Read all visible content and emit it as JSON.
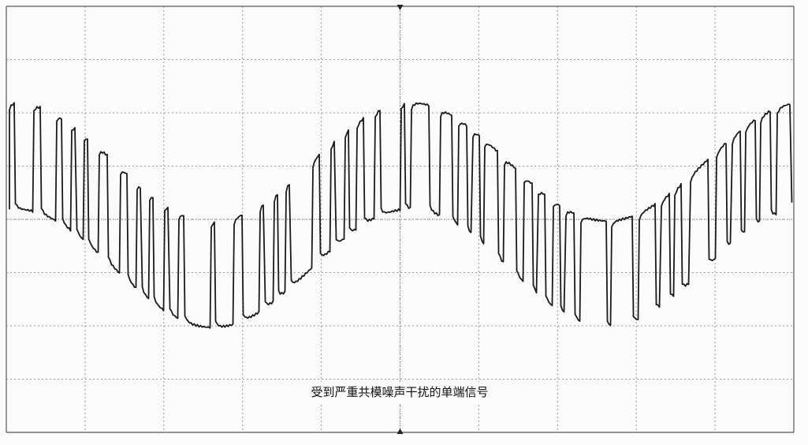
{
  "caption": "受到严重共模噪声干扰的单端信号"
}
